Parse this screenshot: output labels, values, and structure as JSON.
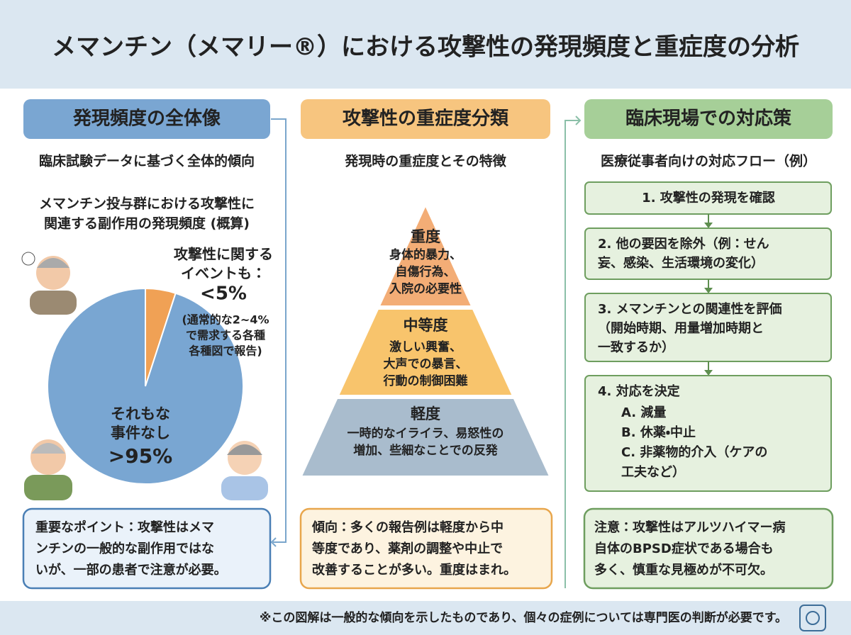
{
  "title": "メマンチン（メマリー®）における攻撃性の発現頻度と重症度の分析",
  "frequency": {
    "heading": "発現頻度の全体像",
    "subtitle": "臨床試験データに基づく全体的傾向",
    "chart_title": [
      "メマンチン投与群における攻撃性に",
      "関連する副作用の発現頻度 (概算)"
    ],
    "pie": {
      "type": "pie",
      "slices": [
        {
          "value": 5,
          "label": "<5%",
          "color": "#f0a155",
          "caption": [
            "攻撃性に関する",
            "イベントも："
          ],
          "note": [
            "(通常的な2~4%",
            "で需求する各種",
            "各種図で報告)"
          ]
        },
        {
          "value": 95,
          "label": ">95%",
          "color": "#79a6d2",
          "caption": [
            "それもな",
            "事件なし"
          ]
        }
      ]
    },
    "point": [
      "重要なポイント：攻撃性はメマ",
      "ンチンの一般的な副作用ではな",
      "いが、一部の患者で注意が必要。"
    ]
  },
  "severity": {
    "heading": "攻撃性の重症度分類",
    "subtitle": "発現時の重症度とその特徴",
    "levels": [
      {
        "name": "重度",
        "lines": [
          "身体的暴力、",
          "自傷行為、",
          "入院の必要性"
        ]
      },
      {
        "name": "中等度",
        "lines": [
          "激しい興奮、",
          "大声での暴言、",
          "行動の制御困難"
        ]
      },
      {
        "name": "軽度",
        "lines": [
          "一時的なイライラ、易怒性の",
          "増加、些細なことでの反発"
        ]
      }
    ],
    "trend": [
      "傾向：多くの報告例は軽度から中",
      "等度であり、薬剤の調整や中止で",
      "改善することが多い。重度はまれ。"
    ]
  },
  "response": {
    "heading": "臨床現場での対応策",
    "subtitle": "医療従事者向けの対応フロー（例）",
    "steps": [
      {
        "lines": [
          "1. 攻撃性の発現を確認"
        ]
      },
      {
        "lines": [
          "2. 他の要因を除外（例：せん",
          "妄、感染、生活環境の変化）"
        ]
      },
      {
        "lines": [
          "3. メマンチンとの関連性を評価",
          "（開始時期、用量増加時期と",
          "一致するか）"
        ]
      },
      {
        "lines": [
          "4. 対応を決定"
        ],
        "options": [
          "A. 減量",
          "B. 休薬・中止",
          "C. 非薬物的介入（ケアの",
          "工夫など）"
        ]
      }
    ],
    "caution": [
      "注意：攻撃性はアルツハイマー病",
      "自体のBPSD症状である場合も",
      "多く、慎重な見極めが不可欠。"
    ]
  },
  "footer": "※この図解は一般的な傾向を示したものであり、個々の症例については専門医の判断が必要です。"
}
